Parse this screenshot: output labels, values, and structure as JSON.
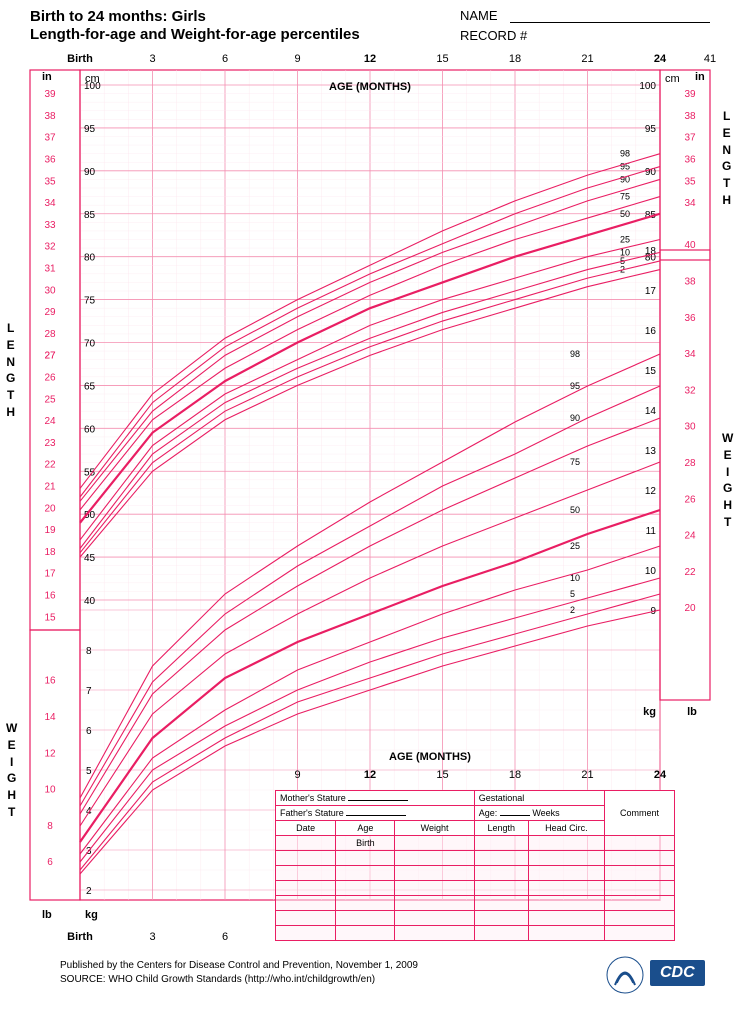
{
  "header": {
    "title1": "Birth to 24 months: Girls",
    "title2": "Length-for-age and Weight-for-age percentiles",
    "name_label": "NAME",
    "record_label": "RECORD #"
  },
  "chart": {
    "type": "line",
    "primary_color": "#e91e63",
    "grid_major_color": "#f48fb1",
    "grid_minor_color": "#fce4ec",
    "background_color": "#ffffff",
    "x_axis": {
      "label": "AGE (MONTHS)",
      "label_fontsize": 11,
      "ticks": [
        0,
        3,
        6,
        9,
        12,
        15,
        18,
        21,
        24
      ],
      "tick_labels": [
        "Birth",
        "3",
        "6",
        "9",
        "12",
        "15",
        "18",
        "21",
        "24"
      ],
      "bold_ticks": [
        "Birth",
        "12",
        "24"
      ],
      "extra_right": "41"
    },
    "length_axis": {
      "left_in_label": "in",
      "left_cm_label": "cm",
      "right_cm_label": "cm",
      "right_in_label": "in",
      "in_ticks": [
        15,
        16,
        17,
        18,
        19,
        20,
        21,
        22,
        23,
        24,
        25,
        26,
        27,
        27,
        28,
        29,
        30,
        31,
        32,
        33,
        34,
        35,
        36,
        37,
        38,
        39
      ],
      "cm_ticks": [
        40,
        45,
        50,
        55,
        60,
        65,
        70,
        75,
        80,
        85,
        90,
        95,
        100
      ],
      "right_cm_ticks": [
        80,
        85,
        90,
        95,
        100
      ],
      "right_in_ticks": [
        34,
        35,
        36,
        37,
        38,
        39
      ],
      "left_vert_label": "LENGTH",
      "right_vert_label": "LENGTH"
    },
    "weight_axis": {
      "left_lb_label": "lb",
      "left_kg_label": "kg",
      "right_kg_label": "kg",
      "right_lb_label": "lb",
      "kg_ticks": [
        2,
        3,
        4,
        5,
        6,
        7,
        8
      ],
      "lb_ticks": [
        6,
        8,
        10,
        12,
        14,
        16
      ],
      "right_kg_ticks": [
        9,
        10,
        11,
        12,
        13,
        14,
        15,
        16,
        17,
        18
      ],
      "right_lb_ticks": [
        20,
        22,
        24,
        26,
        28,
        30,
        32,
        34,
        36,
        38,
        40
      ],
      "left_vert_label": "WEIGHT",
      "right_vert_label": "WEIGHT"
    },
    "percentile_labels": [
      "98",
      "95",
      "90",
      "75",
      "50",
      "25",
      "10",
      "5",
      "2"
    ],
    "length_curves": {
      "percentiles": [
        2,
        5,
        10,
        25,
        50,
        75,
        90,
        95,
        98
      ],
      "color": "#e91e63",
      "bold_percentile": 50,
      "data": {
        "x": [
          0,
          3,
          6,
          9,
          12,
          15,
          18,
          21,
          24
        ],
        "2": [
          45.0,
          55.0,
          61.0,
          65.0,
          68.5,
          71.5,
          74.0,
          76.5,
          78.5
        ],
        "5": [
          45.5,
          56.0,
          62.0,
          66.0,
          69.5,
          72.5,
          75.0,
          77.5,
          79.5
        ],
        "10": [
          46.0,
          57.0,
          63.0,
          67.0,
          70.5,
          73.5,
          76.0,
          78.5,
          80.5
        ],
        "25": [
          47.0,
          58.0,
          64.0,
          68.0,
          72.0,
          75.0,
          77.5,
          80.0,
          82.0
        ],
        "50": [
          49.0,
          59.5,
          65.5,
          70.0,
          74.0,
          77.0,
          80.0,
          82.5,
          85.0
        ],
        "75": [
          50.5,
          61.0,
          67.0,
          71.5,
          75.5,
          79.0,
          82.0,
          84.5,
          87.0
        ],
        "90": [
          51.5,
          62.0,
          68.5,
          73.0,
          77.0,
          80.5,
          83.5,
          86.5,
          89.0
        ],
        "95": [
          52.0,
          63.0,
          69.5,
          74.0,
          78.0,
          81.5,
          85.0,
          88.0,
          90.5
        ],
        "98": [
          53.0,
          64.0,
          70.5,
          75.0,
          79.0,
          83.0,
          86.5,
          89.5,
          92.0
        ]
      }
    },
    "weight_curves": {
      "percentiles": [
        2,
        5,
        10,
        25,
        50,
        75,
        90,
        95,
        98
      ],
      "color": "#e91e63",
      "bold_percentile": 50,
      "data": {
        "x": [
          0,
          3,
          6,
          9,
          12,
          15,
          18,
          21,
          24
        ],
        "2": [
          2.4,
          4.5,
          5.6,
          6.4,
          7.0,
          7.6,
          8.1,
          8.6,
          9.0
        ],
        "5": [
          2.5,
          4.7,
          5.8,
          6.7,
          7.3,
          7.9,
          8.4,
          8.9,
          9.4
        ],
        "10": [
          2.7,
          5.0,
          6.1,
          7.0,
          7.7,
          8.3,
          8.8,
          9.3,
          9.8
        ],
        "25": [
          2.9,
          5.3,
          6.5,
          7.5,
          8.2,
          8.9,
          9.5,
          10.0,
          10.6
        ],
        "50": [
          3.2,
          5.8,
          7.3,
          8.2,
          8.9,
          9.6,
          10.2,
          10.9,
          11.5
        ],
        "75": [
          3.6,
          6.4,
          7.9,
          8.9,
          9.8,
          10.6,
          11.3,
          12.0,
          12.7
        ],
        "90": [
          3.9,
          6.9,
          8.5,
          9.6,
          10.6,
          11.5,
          12.3,
          13.1,
          13.8
        ],
        "95": [
          4.1,
          7.2,
          8.9,
          10.1,
          11.1,
          12.1,
          12.9,
          13.8,
          14.6
        ],
        "98": [
          4.3,
          7.6,
          9.4,
          10.6,
          11.7,
          12.7,
          13.7,
          14.6,
          15.4
        ]
      }
    }
  },
  "data_entry": {
    "mothers_stature": "Mother's Stature",
    "fathers_stature": "Father's Stature",
    "gestational": "Gestational",
    "age_weeks": "Age:",
    "weeks": "Weeks",
    "comment": "Comment",
    "cols": [
      "Date",
      "Age",
      "Weight",
      "Length",
      "Head Circ."
    ],
    "birth_row": "Birth"
  },
  "footer": {
    "line1": "Published by the Centers for Disease Control and Prevention, November 1, 2009",
    "line2": "SOURCE:  WHO Child Growth Standards (http://who.int/childgrowth/en)",
    "cdc_label": "CDC"
  }
}
